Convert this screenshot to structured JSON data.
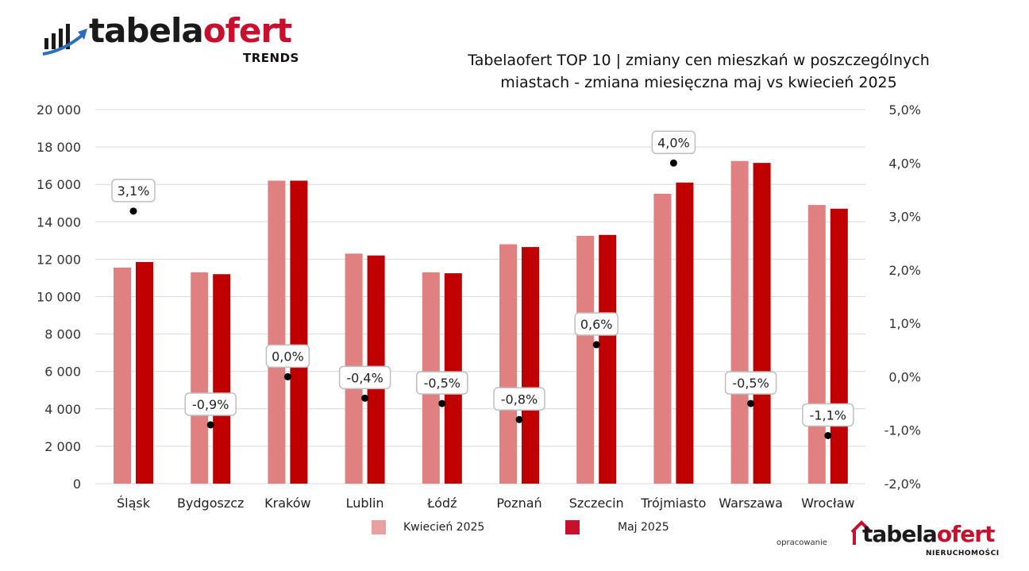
{
  "brand": {
    "logo_part1": "tabela",
    "logo_part2": "ofert",
    "logo_sub": "TRENDS",
    "footer_prefix": "opracowanie",
    "footer_part1": "tabela",
    "footer_part2": "ofert",
    "footer_sub": "NIERUCHOMOŚCI",
    "accent": "#c8102e"
  },
  "chart_data": {
    "type": "bar",
    "title": "Tabelaofert TOP 10 | zmiany cen mieszkań w poszczególnych miastach - zmiana miesięczna maj vs kwiecień 2025",
    "title_lines": [
      "Tabelaofert TOP 10 | zmiany cen mieszkań w poszczególnych",
      "miastach - zmiana miesięczna maj vs kwiecień 2025"
    ],
    "categories": [
      "Śląsk",
      "Bydgoszcz",
      "Kraków",
      "Lublin",
      "Łódź",
      "Poznań",
      "Szczecin",
      "Trójmiasto",
      "Warszawa",
      "Wrocław"
    ],
    "series": [
      {
        "name": "Kwiecień 2025",
        "color": "#e08080",
        "values": [
          11550,
          11300,
          16200,
          12300,
          11300,
          12800,
          13250,
          15500,
          17250,
          14900
        ]
      },
      {
        "name": "Maj 2025",
        "color": "#c00000",
        "values": [
          11850,
          11200,
          16200,
          12200,
          11250,
          12650,
          13300,
          16100,
          17150,
          14700
        ]
      }
    ],
    "change_series": {
      "type": "scatter",
      "axis": "right",
      "color": "#000000",
      "values": [
        3.1,
        -0.9,
        0.0,
        -0.4,
        -0.5,
        -0.8,
        0.6,
        4.0,
        -0.5,
        -1.1
      ],
      "labels": [
        "3,1%",
        "-0,9%",
        "0,0%",
        "-0,4%",
        "-0,5%",
        "-0,8%",
        "0,6%",
        "4,0%",
        "-0,5%",
        "-1,1%"
      ]
    },
    "ylim_left": [
      0,
      20000
    ],
    "yticks_left": [
      "0",
      "2 000",
      "4 000",
      "6 000",
      "8 000",
      "10 000",
      "12 000",
      "14 000",
      "16 000",
      "18 000",
      "20 000"
    ],
    "ylim_right": [
      -2.0,
      5.0
    ],
    "yticks_right": [
      "-2,0%",
      "-1,0%",
      "0,0%",
      "1,0%",
      "2,0%",
      "3,0%",
      "4,0%",
      "5,0%"
    ],
    "grid": true,
    "legend_position": "bottom"
  }
}
